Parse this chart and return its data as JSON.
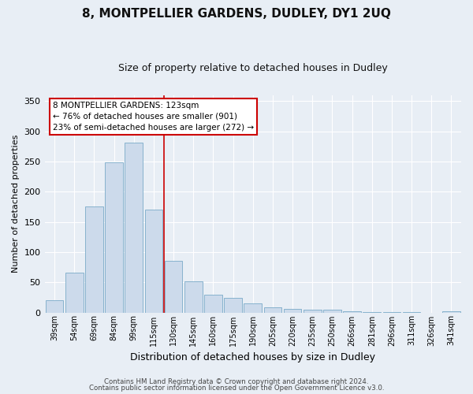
{
  "title": "8, MONTPELLIER GARDENS, DUDLEY, DY1 2UQ",
  "subtitle": "Size of property relative to detached houses in Dudley",
  "xlabel": "Distribution of detached houses by size in Dudley",
  "ylabel": "Number of detached properties",
  "bar_color": "#ccdaeb",
  "bar_edge_color": "#7aaac8",
  "background_color": "#e8eef5",
  "grid_color": "#ffffff",
  "categories": [
    "39sqm",
    "54sqm",
    "69sqm",
    "84sqm",
    "99sqm",
    "115sqm",
    "130sqm",
    "145sqm",
    "160sqm",
    "175sqm",
    "190sqm",
    "205sqm",
    "220sqm",
    "235sqm",
    "250sqm",
    "266sqm",
    "281sqm",
    "296sqm",
    "311sqm",
    "326sqm",
    "341sqm"
  ],
  "values": [
    20,
    66,
    175,
    248,
    281,
    170,
    85,
    52,
    30,
    24,
    15,
    9,
    6,
    4,
    5,
    2,
    1,
    1,
    1,
    0,
    2
  ],
  "ylim": [
    0,
    360
  ],
  "yticks": [
    0,
    50,
    100,
    150,
    200,
    250,
    300,
    350
  ],
  "vline_x": 5.5,
  "vline_color": "#cc0000",
  "annotation_text": "8 MONTPELLIER GARDENS: 123sqm\n← 76% of detached houses are smaller (901)\n23% of semi-detached houses are larger (272) →",
  "annotation_box_color": "#ffffff",
  "annotation_box_edge": "#cc0000",
  "footer_line1": "Contains HM Land Registry data © Crown copyright and database right 2024.",
  "footer_line2": "Contains public sector information licensed under the Open Government Licence v3.0."
}
